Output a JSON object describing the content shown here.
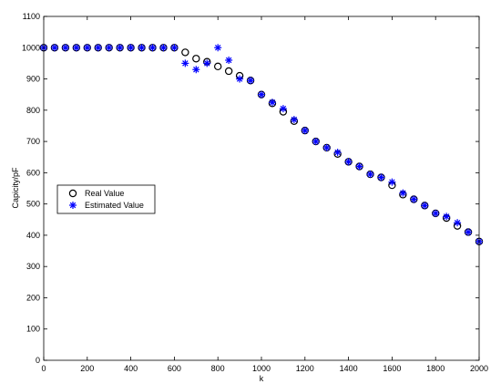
{
  "chart_data": {
    "type": "scatter",
    "xlabel": "k",
    "ylabel": "Capicity/pF",
    "xlim": [
      0,
      2000
    ],
    "ylim": [
      0,
      1100
    ],
    "xticks": [
      0,
      200,
      400,
      600,
      800,
      1000,
      1200,
      1400,
      1600,
      1800,
      2000
    ],
    "yticks": [
      0,
      100,
      200,
      300,
      400,
      500,
      600,
      700,
      800,
      900,
      1000,
      1100
    ],
    "grid": false,
    "legend_position": "middle-left",
    "series": [
      {
        "name": "Real Value",
        "marker": "circle",
        "color": "#000000",
        "x": [
          0,
          50,
          100,
          150,
          200,
          250,
          300,
          350,
          400,
          450,
          500,
          550,
          600,
          650,
          700,
          750,
          800,
          850,
          900,
          950,
          1000,
          1050,
          1100,
          1150,
          1200,
          1250,
          1300,
          1350,
          1400,
          1450,
          1500,
          1550,
          1600,
          1650,
          1700,
          1750,
          1800,
          1850,
          1900,
          1950,
          2000
        ],
        "y": [
          1000,
          1000,
          1000,
          1000,
          1000,
          1000,
          1000,
          1000,
          1000,
          1000,
          1000,
          1000,
          1000,
          985,
          965,
          955,
          940,
          925,
          910,
          895,
          850,
          822,
          795,
          765,
          735,
          700,
          680,
          660,
          635,
          620,
          595,
          585,
          560,
          530,
          515,
          495,
          470,
          455,
          430,
          410,
          380
        ]
      },
      {
        "name": "Estimated Value",
        "marker": "asterisk",
        "color": "#0000ff",
        "x": [
          0,
          50,
          100,
          150,
          200,
          250,
          300,
          350,
          400,
          450,
          500,
          550,
          600,
          650,
          700,
          750,
          800,
          850,
          900,
          950,
          1000,
          1050,
          1100,
          1150,
          1200,
          1250,
          1300,
          1350,
          1400,
          1450,
          1500,
          1550,
          1600,
          1650,
          1700,
          1750,
          1800,
          1850,
          1900,
          1950,
          2000
        ],
        "y": [
          1000,
          1000,
          1000,
          1000,
          1000,
          1000,
          1000,
          1000,
          1000,
          1000,
          1000,
          1000,
          1000,
          950,
          930,
          950,
          1000,
          960,
          900,
          895,
          850,
          825,
          805,
          770,
          735,
          700,
          680,
          665,
          635,
          620,
          595,
          585,
          570,
          535,
          515,
          495,
          470,
          460,
          440,
          410,
          380
        ]
      }
    ]
  }
}
